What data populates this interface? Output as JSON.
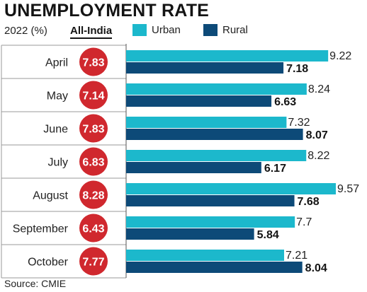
{
  "header": {
    "title": "UNEMPLOYMENT RATE",
    "subtitle": "2022 (%)",
    "all_india_label": "All-India"
  },
  "legend": {
    "urban": "Urban",
    "rural": "Rural"
  },
  "source": "Source: CMIE",
  "colors": {
    "urban": "#1cb8cc",
    "rural": "#0d4a78",
    "circle": "#d0282e",
    "row_line": "#9a9a9a"
  },
  "chart_data": {
    "type": "bar",
    "orientation": "horizontal",
    "title": "UNEMPLOYMENT RATE",
    "subtitle": "2022 (%)",
    "categories": [
      "April",
      "May",
      "June",
      "July",
      "August",
      "September",
      "October"
    ],
    "all_india": [
      "7.83",
      "7.14",
      "7.83",
      "6.83",
      "8.28",
      "6.43",
      "7.77"
    ],
    "series": [
      {
        "name": "Urban",
        "values": [
          9.22,
          8.24,
          7.32,
          8.22,
          9.57,
          7.7,
          7.21
        ],
        "labels": [
          "9.22",
          "8.24",
          "7.32",
          "8.22",
          "9.57",
          "7.7",
          "7.21"
        ]
      },
      {
        "name": "Rural",
        "values": [
          7.18,
          6.63,
          8.07,
          6.17,
          7.68,
          5.84,
          8.04
        ],
        "labels": [
          "7.18",
          "6.63",
          "8.07",
          "6.17",
          "7.68",
          "5.84",
          "8.04"
        ]
      }
    ],
    "xlim": [
      0,
      9.57
    ],
    "legend_position": "top",
    "grid": false,
    "source": "Source: CMIE"
  }
}
